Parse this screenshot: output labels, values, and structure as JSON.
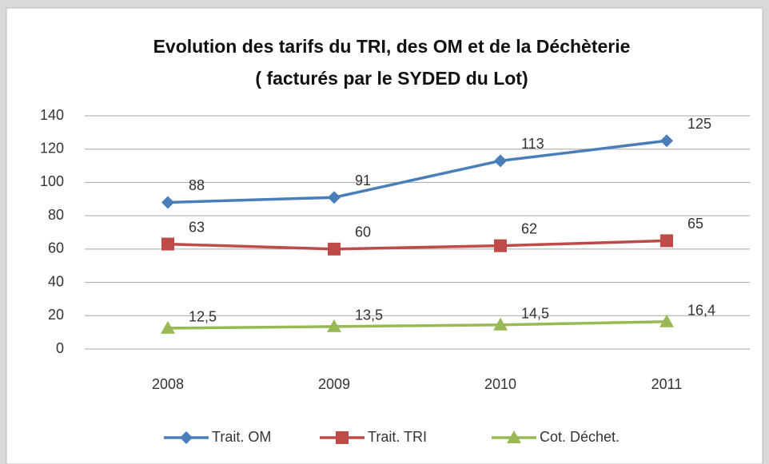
{
  "chart_data": {
    "type": "line",
    "title": "Evolution des tarifs du TRI, des OM et de la Déchèterie",
    "subtitle": "( facturés par le SYDED du Lot)",
    "categories": [
      "2008",
      "2009",
      "2010",
      "2011"
    ],
    "series": [
      {
        "name": "Trait. OM",
        "color": "#4a7ebb",
        "marker": "diamond",
        "values": [
          88,
          91,
          113,
          125
        ]
      },
      {
        "name": "Trait. TRI",
        "color": "#be4b48",
        "marker": "square",
        "values": [
          63,
          60,
          62,
          65
        ]
      },
      {
        "name": "Cot. Déchet.",
        "color": "#98b954",
        "marker": "triangle",
        "values": [
          12.5,
          13.5,
          14.5,
          16.4
        ],
        "value_labels": [
          "12,5",
          "13,5",
          "14,5",
          "16,4"
        ]
      }
    ],
    "ylim": [
      0,
      140
    ],
    "yticks": [
      0,
      20,
      40,
      60,
      80,
      100,
      120,
      140
    ],
    "grid": true,
    "legend": "bottom"
  }
}
